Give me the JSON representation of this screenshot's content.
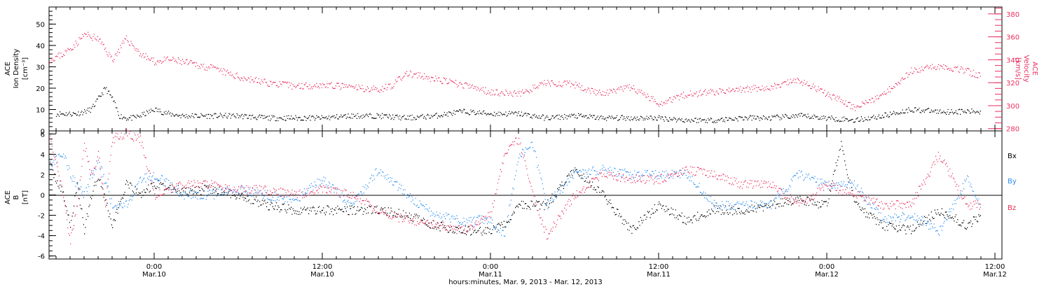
{
  "colors": {
    "black": "#000000",
    "pink": "#e8305f",
    "blue": "#2a8ef0"
  },
  "chart_data": [
    {
      "type": "scatter",
      "panel": "density-velocity",
      "ylabel_left": [
        "ACE",
        "Ion Density",
        "[cm⁻³]"
      ],
      "ylabel_right": [
        "ACE",
        "Velocity",
        "[km/s]"
      ],
      "ylim_left": [
        0,
        58
      ],
      "yticks_left": [
        0,
        10,
        20,
        30,
        40,
        50
      ],
      "ylim_right": [
        278,
        386
      ],
      "yticks_right": [
        280,
        300,
        320,
        340,
        360,
        380
      ],
      "x_range_hours": [
        -7.5,
        60.5
      ],
      "series": [
        {
          "axis": "left",
          "color": "#000000",
          "x": [
            -7.0,
            -5.5,
            -4.5,
            -3.5,
            -3.0,
            -2.5,
            -2.0,
            -1.5,
            -1.0,
            0.0,
            1.0,
            2.0,
            4.0,
            6.0,
            8.0,
            10.0,
            12.0,
            14.0,
            16.0,
            18.0,
            20.0,
            22.0,
            24.0,
            26.0,
            28.0,
            30.0,
            32.0,
            34.0,
            36.0,
            38.0,
            40.0,
            42.0,
            44.0,
            46.0,
            48.0,
            50.0,
            52.0,
            54.0,
            56.0,
            58.0,
            59.0
          ],
          "y": [
            8,
            8,
            10,
            20,
            15,
            7,
            6,
            6,
            7,
            10,
            8,
            7,
            7,
            7,
            6,
            6,
            6,
            7,
            7,
            6,
            7,
            9,
            8,
            8,
            6,
            7,
            6,
            6,
            6,
            5,
            5,
            6,
            6,
            7,
            6,
            5,
            7,
            10,
            9,
            9,
            9
          ]
        },
        {
          "axis": "right",
          "color": "#e8305f",
          "x": [
            -7.5,
            -6.5,
            -5.5,
            -5.0,
            -4.5,
            -4.0,
            -3.0,
            -2.0,
            -1.5,
            -1.0,
            0.0,
            1.0,
            2.0,
            4.0,
            6.0,
            8.0,
            10.0,
            12.0,
            14.0,
            16.0,
            17.0,
            18.0,
            20.0,
            22.0,
            24.0,
            26.0,
            28.0,
            30.0,
            32.0,
            34.0,
            36.0,
            38.0,
            40.0,
            42.0,
            44.0,
            46.0,
            48.0,
            50.0,
            52.0,
            54.0,
            56.0,
            58.0,
            59.0
          ],
          "y": [
            340,
            345,
            355,
            362,
            360,
            358,
            340,
            358,
            352,
            345,
            338,
            340,
            338,
            333,
            325,
            320,
            317,
            318,
            316,
            314,
            318,
            328,
            323,
            318,
            312,
            310,
            320,
            318,
            310,
            316,
            302,
            310,
            312,
            314,
            316,
            322,
            310,
            298,
            310,
            330,
            335,
            330,
            325
          ]
        }
      ]
    },
    {
      "type": "scatter",
      "panel": "magnetic-field",
      "ylabel": [
        "ACE",
        "B",
        "[nT]"
      ],
      "ylim": [
        -6.3,
        6.3
      ],
      "yticks": [
        -6,
        -4,
        -2,
        0,
        2,
        4,
        6
      ],
      "zero_line": true,
      "legend": [
        "Bx",
        "By",
        "Bz"
      ],
      "x_range_hours": [
        -7.5,
        60.5
      ],
      "series": [
        {
          "name": "Bx",
          "color": "#000000",
          "x": [
            -7.5,
            -6.5,
            -6.0,
            -5.5,
            -5.0,
            -4.5,
            -4.0,
            -3.0,
            -2.0,
            -1.0,
            0.0,
            2.0,
            4.0,
            6.0,
            8.0,
            10.0,
            12.0,
            14.0,
            16.0,
            18.0,
            20.0,
            22.0,
            24.0,
            25.0,
            26.0,
            28.0,
            30.0,
            32.0,
            34.0,
            36.0,
            38.0,
            40.0,
            42.0,
            44.0,
            46.0,
            48.0,
            49.0,
            50.0,
            52.0,
            54.0,
            56.0,
            58.0,
            59.0
          ],
          "y": [
            3,
            0,
            -3,
            1,
            -3.5,
            0,
            2,
            -3,
            1,
            0,
            1,
            0.5,
            0.5,
            0,
            -1,
            -1.5,
            -1.5,
            -1.5,
            -1.5,
            -2,
            -3,
            -3.5,
            -3.5,
            -3,
            -1,
            -1,
            2.5,
            0,
            -3.5,
            -1,
            -2.5,
            -1.5,
            -1.5,
            -1,
            -0.5,
            -1,
            5,
            -1,
            -3,
            -3.5,
            -1.5,
            -3,
            -2
          ]
        },
        {
          "name": "By",
          "color": "#2a8ef0",
          "x": [
            -7.5,
            -6.5,
            -6.0,
            -5.0,
            -4.0,
            -3.0,
            -2.0,
            -1.0,
            0.0,
            2.0,
            4.0,
            6.0,
            8.0,
            10.0,
            12.0,
            14.0,
            16.0,
            18.0,
            20.0,
            22.0,
            24.0,
            25.0,
            26.0,
            27.0,
            28.0,
            30.0,
            32.0,
            34.0,
            36.0,
            38.0,
            40.0,
            42.0,
            44.0,
            46.0,
            48.0,
            50.0,
            52.0,
            54.0,
            56.0,
            58.0,
            59.0
          ],
          "y": [
            3,
            4,
            2,
            0,
            3.5,
            -1,
            -1,
            1.5,
            2,
            0,
            0,
            0.5,
            0,
            -0.5,
            1.5,
            -1,
            2.5,
            0,
            -2,
            -2.5,
            -2.5,
            -4,
            4,
            5,
            -1,
            2,
            2.5,
            2,
            2,
            2,
            -1,
            -1,
            -1,
            2,
            1,
            1,
            -2.5,
            -2,
            -3.5,
            1.5,
            -1
          ]
        },
        {
          "name": "Bz",
          "color": "#e8305f",
          "x": [
            -7.5,
            -6.5,
            -6.0,
            -5.5,
            -5.0,
            -4.5,
            -4.0,
            -3.5,
            -3.0,
            -2.0,
            -1.0,
            0.0,
            2.0,
            4.0,
            6.0,
            8.0,
            10.0,
            12.0,
            14.0,
            16.0,
            18.0,
            20.0,
            22.0,
            24.0,
            25.0,
            26.0,
            27.0,
            28.0,
            30.0,
            32.0,
            34.0,
            36.0,
            38.0,
            40.0,
            42.0,
            44.0,
            46.0,
            48.0,
            50.0,
            52.0,
            54.0,
            56.0,
            58.0,
            59.0
          ],
          "y": [
            6,
            0,
            -4.5,
            -1,
            5,
            2,
            4,
            -1,
            5.5,
            6,
            5.5,
            0,
            1,
            1,
            0.5,
            0.5,
            0,
            0.5,
            0,
            -1.5,
            -2.5,
            -3,
            -3.5,
            -2,
            4,
            5.5,
            0,
            -4,
            0,
            2,
            1.5,
            1.5,
            2.5,
            2,
            1,
            1,
            -1,
            1,
            0,
            -1,
            -1,
            4,
            -1,
            -1
          ]
        }
      ]
    }
  ],
  "x_axis": {
    "ticks": [
      {
        "hour": 0,
        "time": "0:00",
        "date": "Mar.10"
      },
      {
        "hour": 12,
        "time": "12:00",
        "date": "Mar.10"
      },
      {
        "hour": 24,
        "time": "0:00",
        "date": "Mar.11"
      },
      {
        "hour": 36,
        "time": "12:00",
        "date": "Mar.11"
      },
      {
        "hour": 48,
        "time": "0:00",
        "date": "Mar.12"
      },
      {
        "hour": 60,
        "time": "12:00",
        "date": "Mar.12"
      }
    ],
    "label": "hours:minutes, Mar.  9, 2013 - Mar. 12, 2013"
  }
}
